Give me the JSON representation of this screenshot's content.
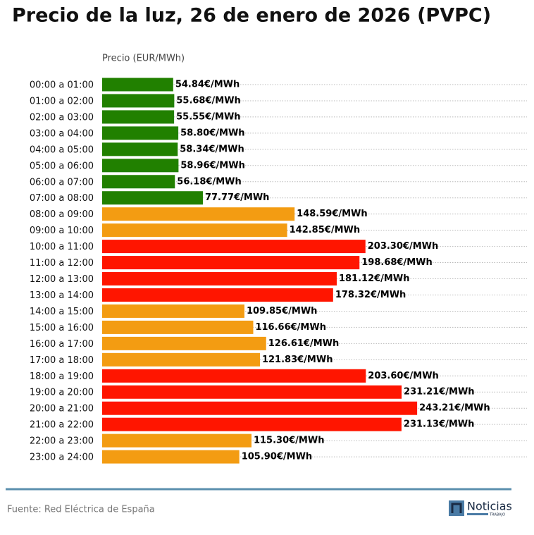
{
  "chart_data": {
    "type": "barh",
    "title": "Precio de la luz, 26 de enero de 2026 (PVPC)",
    "xlabel": "Precio (EUR/MWh)",
    "categories": [
      "00:00 a 01:00",
      "01:00 a 02:00",
      "02:00 a 03:00",
      "03:00 a 04:00",
      "04:00 a 05:00",
      "05:00 a 06:00",
      "06:00 a 07:00",
      "07:00 a 08:00",
      "08:00 a 09:00",
      "09:00 a 10:00",
      "10:00 a 11:00",
      "11:00 a 12:00",
      "12:00 a 13:00",
      "13:00 a 14:00",
      "14:00 a 15:00",
      "15:00 a 16:00",
      "16:00 a 17:00",
      "17:00 a 18:00",
      "18:00 a 19:00",
      "19:00 a 20:00",
      "20:00 a 21:00",
      "21:00 a 22:00",
      "22:00 a 23:00",
      "23:00 a 24:00"
    ],
    "values": [
      54.84,
      55.68,
      55.55,
      58.8,
      58.34,
      58.96,
      56.18,
      77.77,
      148.59,
      142.85,
      203.3,
      198.68,
      181.12,
      178.32,
      109.85,
      116.66,
      126.61,
      121.83,
      203.6,
      231.21,
      243.21,
      231.13,
      115.3,
      105.9
    ],
    "value_labels": [
      "54.84€/MWh",
      "55.68€/MWh",
      "55.55€/MWh",
      "58.80€/MWh",
      "58.34€/MWh",
      "58.96€/MWh",
      "56.18€/MWh",
      "77.77€/MWh",
      "148.59€/MWh",
      "142.85€/MWh",
      "203.30€/MWh",
      "198.68€/MWh",
      "181.12€/MWh",
      "178.32€/MWh",
      "109.85€/MWh",
      "116.66€/MWh",
      "126.61€/MWh",
      "121.83€/MWh",
      "203.60€/MWh",
      "231.21€/MWh",
      "243.21€/MWh",
      "231.13€/MWh",
      "115.30€/MWh",
      "105.90€/MWh"
    ],
    "colors": [
      "#218000",
      "#218000",
      "#218000",
      "#218000",
      "#218000",
      "#218000",
      "#218000",
      "#218000",
      "#f39c12",
      "#f39c12",
      "#ff1500",
      "#ff1500",
      "#ff1500",
      "#ff1500",
      "#f39c12",
      "#f39c12",
      "#f39c12",
      "#f39c12",
      "#ff1500",
      "#ff1500",
      "#ff1500",
      "#ff1500",
      "#f39c12",
      "#f39c12"
    ],
    "xlim": [
      0,
      328
    ],
    "grid": true
  },
  "footer": {
    "source": "Fuente: Red Eléctrica de España",
    "logo": {
      "name": "Noticias",
      "sub": "TRABAJO"
    }
  }
}
